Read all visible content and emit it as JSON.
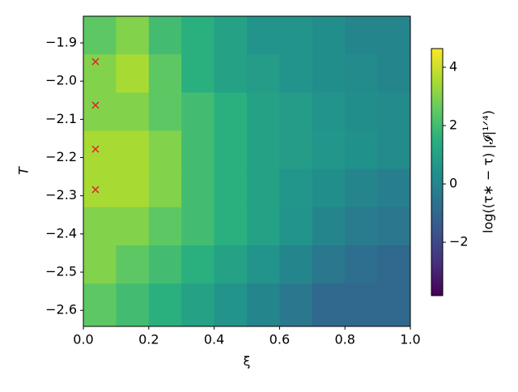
{
  "chart_data": {
    "type": "heatmap",
    "x_label": "ξ",
    "y_label": "T",
    "colorbar_label": "log((τ∗ − τ) |𝓘|¹ᐟ⁴)",
    "x_edges": [
      0,
      0.1,
      0.2,
      0.3,
      0.4,
      0.5,
      0.6,
      0.7,
      0.8,
      0.9,
      1.0
    ],
    "y_edges": [
      -1.83,
      -1.93,
      -2.03,
      -2.13,
      -2.23,
      -2.33,
      -2.43,
      -2.53,
      -2.642
    ],
    "z": [
      [
        2.5,
        3,
        2,
        1.5,
        1,
        0.5,
        0.5,
        0.3,
        0,
        0
      ],
      [
        3,
        3.5,
        2.5,
        1.5,
        1,
        0.8,
        0.5,
        0.3,
        0.2,
        0
      ],
      [
        3,
        3,
        2.5,
        2,
        1.5,
        1,
        0.8,
        0.5,
        0.3,
        0.2
      ],
      [
        3.5,
        3.5,
        3,
        2,
        1.5,
        1,
        0.8,
        0.6,
        0.4,
        0.2
      ],
      [
        3.5,
        3.5,
        3,
        2,
        1.5,
        1,
        0.6,
        0.3,
        0,
        -0.2
      ],
      [
        3,
        3,
        2.5,
        2,
        1.5,
        1,
        0.5,
        0,
        -0.3,
        -0.5
      ],
      [
        3,
        2.5,
        2,
        1.5,
        1,
        0.5,
        0,
        -0.5,
        -0.8,
        -1
      ],
      [
        2.5,
        2,
        1.5,
        1,
        0.5,
        0,
        -0.5,
        -1,
        -1,
        -1
      ]
    ],
    "colormap": [
      "#440154",
      "#472d7b",
      "#3b528b",
      "#2c728e",
      "#21918c",
      "#28ae80",
      "#5ec962",
      "#addc30",
      "#fde725"
    ],
    "markers": {
      "color": "#d62728",
      "x": [
        0.037,
        0.037,
        0.037,
        0.037
      ],
      "y": [
        -1.949,
        -2.063,
        -2.178,
        -2.284
      ]
    },
    "xlim": [
      0,
      1.0
    ],
    "xticks": [
      {
        "value": 0,
        "label": "0.0"
      },
      {
        "value": 0.2,
        "label": "0.2"
      },
      {
        "value": 0.4,
        "label": "0.4"
      },
      {
        "value": 0.6,
        "label": "0.6"
      },
      {
        "value": 0.8,
        "label": "0.8"
      },
      {
        "value": 1.0,
        "label": "1.0"
      }
    ],
    "ylim": [
      -2.642,
      -1.83
    ],
    "yticks": [
      {
        "value": -1.9,
        "label": "−1.9"
      },
      {
        "value": -2.0,
        "label": "−2.0"
      },
      {
        "value": -2.1,
        "label": "−2.1"
      },
      {
        "value": -2.2,
        "label": "−2.2"
      },
      {
        "value": -2.3,
        "label": "−2.3"
      },
      {
        "value": -2.4,
        "label": "−2.4"
      },
      {
        "value": -2.5,
        "label": "−2.5"
      },
      {
        "value": -2.6,
        "label": "−2.6"
      }
    ],
    "clim": [
      -3.83,
      4.64
    ],
    "cticks": [
      {
        "value": -2,
        "label": "−2"
      },
      {
        "value": 0,
        "label": "0"
      },
      {
        "value": 2,
        "label": "2"
      },
      {
        "value": 4,
        "label": "4"
      }
    ]
  }
}
